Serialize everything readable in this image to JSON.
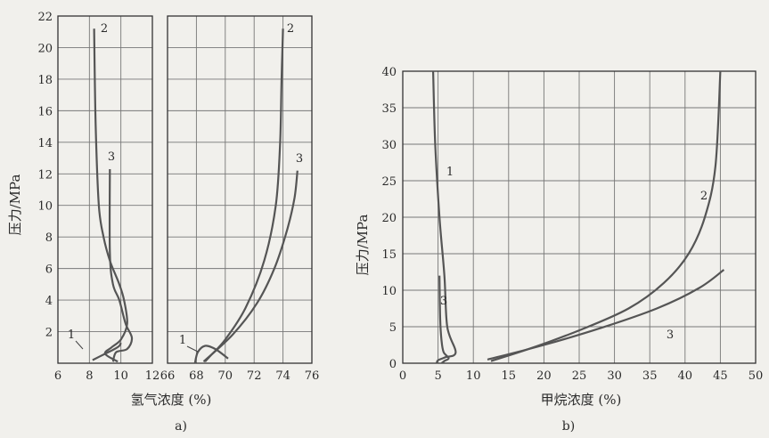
{
  "chart_data": [
    {
      "type": "line",
      "ylabel": "压力/MPa",
      "ylim": [
        0,
        22
      ],
      "yticks": [
        "2",
        "4",
        "6",
        "8",
        "10",
        "12",
        "14",
        "16",
        "18",
        "20",
        "22"
      ],
      "panels": [
        {
          "xlim": [
            6,
            12
          ],
          "xticks": [
            "6",
            "8",
            "10",
            "12"
          ],
          "series": [
            {
              "name": "1",
              "x": [
                8.2,
                9.0,
                9.6,
                9.9,
                10.0
              ],
              "y": [
                0.2,
                0.6,
                0.9,
                1.1,
                1.3
              ]
            },
            {
              "name": "2",
              "x": [
                8.3,
                8.4,
                8.6,
                8.9,
                9.3,
                9.9,
                10.2,
                10.4,
                10.0,
                9.4,
                9.0,
                9.8
              ],
              "y": [
                21.2,
                15.0,
                10.0,
                8.0,
                6.5,
                5.0,
                4.0,
                2.5,
                1.5,
                1.0,
                0.6,
                0.1
              ]
            },
            {
              "name": "3",
              "x": [
                9.3,
                9.3,
                9.5,
                9.9,
                10.3,
                10.7,
                10.4,
                9.7,
                9.5
              ],
              "y": [
                12.3,
                7.0,
                5.0,
                4.0,
                2.5,
                1.6,
                0.9,
                0.7,
                0.1
              ]
            }
          ]
        },
        {
          "xlim": [
            66,
            76
          ],
          "xticks": [
            "66",
            "68",
            "70",
            "72",
            "74",
            "76"
          ],
          "series": [
            {
              "name": "1",
              "x": [
                67.9,
                68.1,
                68.6,
                69.3,
                70.2
              ],
              "y": [
                0.0,
                0.7,
                1.1,
                0.9,
                0.3
              ]
            },
            {
              "name": "2",
              "x": [
                68.6,
                69.0,
                70.0,
                71.4,
                72.7,
                73.5,
                73.8,
                73.9,
                74.0
              ],
              "y": [
                0.1,
                0.5,
                1.5,
                3.5,
                6.5,
                10.0,
                14.0,
                18.0,
                21.2
              ]
            },
            {
              "name": "3",
              "x": [
                68.5,
                70.5,
                72.2,
                73.4,
                74.3,
                74.8,
                75.0
              ],
              "y": [
                0.1,
                1.8,
                3.8,
                6.0,
                8.5,
                10.5,
                12.2
              ]
            }
          ]
        }
      ],
      "xlabel": "氢气浓度 (%)",
      "caption": "a)",
      "curve_labels": [
        "1",
        "2",
        "3",
        "1",
        "2",
        "3"
      ]
    },
    {
      "type": "line",
      "ylabel": "压力/MPa",
      "xlabel": "甲烷浓度 (%)",
      "caption": "b)",
      "xlim": [
        0,
        50
      ],
      "ylim": [
        0,
        40
      ],
      "xticks": [
        "0",
        "5",
        "10",
        "15",
        "20",
        "25",
        "30",
        "35",
        "40",
        "45",
        "50"
      ],
      "yticks": [
        "0",
        "5",
        "10",
        "15",
        "20",
        "25",
        "30",
        "35",
        "40"
      ],
      "series": [
        {
          "name": "1",
          "x": [
            4.3,
            4.6,
            5.2,
            5.9,
            6.3,
            7.5,
            6.0,
            5.0,
            4.8
          ],
          "y": [
            40.0,
            30.0,
            20.0,
            12.0,
            5.0,
            1.5,
            0.8,
            0.4,
            0.0
          ]
        },
        {
          "name": "2",
          "x": [
            12.5,
            18.0,
            25.0,
            32.0,
            37.0,
            40.5,
            42.8,
            44.3,
            45.0
          ],
          "y": [
            0.3,
            2.0,
            4.5,
            7.5,
            11.0,
            15.0,
            20.0,
            27.0,
            40.0
          ]
        },
        {
          "name": "3",
          "x": [
            12.0,
            20.0,
            28.0,
            36.0,
            42.0,
            45.5
          ],
          "y": [
            0.5,
            2.5,
            4.8,
            7.5,
            10.3,
            12.8
          ]
        },
        {
          "name": "3",
          "x": [
            5.2,
            5.3,
            5.5,
            5.8,
            6.5,
            5.9,
            5.5
          ],
          "y": [
            12.0,
            6.0,
            3.0,
            1.5,
            0.7,
            0.3,
            0.0
          ]
        }
      ],
      "curve_labels": [
        "1",
        "2",
        "3",
        "3"
      ]
    }
  ]
}
